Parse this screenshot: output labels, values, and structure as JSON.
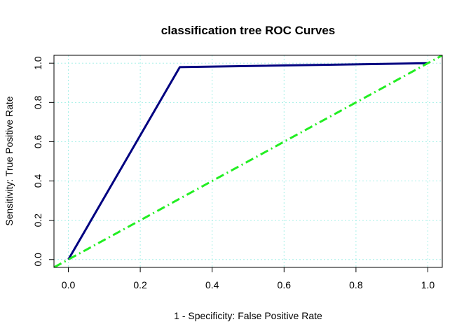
{
  "chart_data": {
    "type": "line",
    "title": "classification tree ROC Curves",
    "xlabel": "1 - Specificity: False Positive Rate",
    "ylabel": "Sensitivity: True Positive Rate",
    "xlim": [
      -0.04,
      1.04
    ],
    "ylim": [
      -0.04,
      1.04
    ],
    "x_ticks": [
      0.0,
      0.2,
      0.4,
      0.6,
      0.8,
      1.0
    ],
    "y_ticks": [
      0.0,
      0.2,
      0.4,
      0.6,
      0.8,
      1.0
    ],
    "x_tick_labels": [
      "0.0",
      "0.2",
      "0.4",
      "0.6",
      "0.8",
      "1.0"
    ],
    "y_tick_labels": [
      "0.0",
      "0.2",
      "0.4",
      "0.6",
      "0.8",
      "1.0"
    ],
    "grid": true,
    "grid_color": "#a8f0e8",
    "legend": "none",
    "series": [
      {
        "color": "#000080",
        "style": "solid",
        "x": [
          0.0,
          0.31,
          1.0
        ],
        "y": [
          0.0,
          0.98,
          1.0
        ]
      },
      {
        "color": "#22ee22",
        "style": "dashed",
        "x": [
          -0.04,
          1.04
        ],
        "y": [
          -0.04,
          1.04
        ]
      }
    ]
  }
}
